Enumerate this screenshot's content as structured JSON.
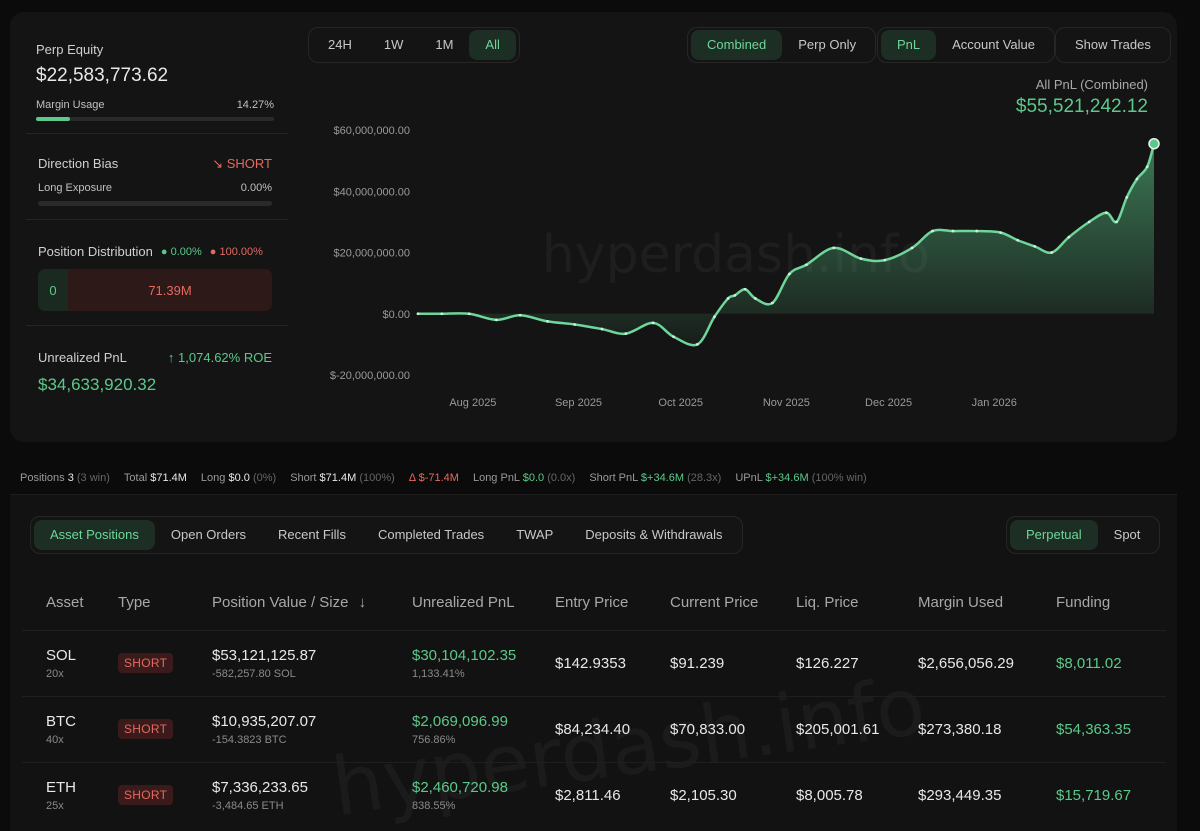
{
  "summary": {
    "perp_equity_label": "Perp Equity",
    "perp_equity_value": "$22,583,773.62",
    "margin_usage_label": "Margin Usage",
    "margin_usage_value": "14.27%",
    "margin_usage_fraction": 0.1427,
    "direction_bias_label": "Direction Bias",
    "direction_bias_value": "SHORT",
    "long_exposure_label": "Long Exposure",
    "long_exposure_value": "0.00%",
    "position_distribution_label": "Position Distribution",
    "dist_long_pct": "0.00%",
    "dist_short_pct": "100.00%",
    "dist_long_value": "0",
    "dist_short_value": "71.39M",
    "unrealized_pnl_label": "Unrealized PnL",
    "roe": "1,074.62% ROE",
    "unrealized_pnl_value": "$34,633,920.32"
  },
  "controls": {
    "timeframes": [
      "24H",
      "1W",
      "1M",
      "All"
    ],
    "active_timeframe": "All",
    "scope": [
      "Combined",
      "Perp Only"
    ],
    "active_scope": "Combined",
    "metric": [
      "PnL",
      "Account Value"
    ],
    "active_metric": "PnL",
    "show_trades": "Show Trades"
  },
  "chart_header": {
    "label": "All PnL (Combined)",
    "value": "$55,521,242.12"
  },
  "watermark": "hyperdash.info",
  "chart_data": {
    "type": "area",
    "title": "All PnL (Combined)",
    "xlabel": "",
    "ylabel": "",
    "x_ticks": [
      "Aug 2025",
      "Sep 2025",
      "Oct 2025",
      "Nov 2025",
      "Dec 2025",
      "Jan 2026"
    ],
    "y_ticks": [
      "$60,000,000.00",
      "$40,000,000.00",
      "$20,000,000.00",
      "$0.00",
      "$-20,000,000.00"
    ],
    "y_tick_values": [
      60000000,
      40000000,
      20000000,
      0,
      -20000000
    ],
    "ylim": [
      -20000000,
      60000000
    ],
    "x_range": [
      "2025-07-20",
      "2026-02-21"
    ],
    "grid": false,
    "series": [
      {
        "x": [
          "2025-07-20",
          "2025-07-27",
          "2025-08-04",
          "2025-08-12",
          "2025-08-19",
          "2025-08-27",
          "2025-09-04",
          "2025-09-12",
          "2025-09-19",
          "2025-09-27",
          "2025-10-03",
          "2025-10-10",
          "2025-10-15",
          "2025-10-19",
          "2025-10-21",
          "2025-10-24",
          "2025-10-27",
          "2025-11-01",
          "2025-11-06",
          "2025-11-11",
          "2025-11-19",
          "2025-11-27",
          "2025-12-04",
          "2025-12-12",
          "2025-12-18",
          "2025-12-24",
          "2025-12-31",
          "2026-01-07",
          "2026-01-12",
          "2026-01-17",
          "2026-01-22",
          "2026-01-27",
          "2026-02-02",
          "2026-02-07",
          "2026-02-10",
          "2026-02-13",
          "2026-02-16",
          "2026-02-19",
          "2026-02-21"
        ],
        "values": [
          0,
          0,
          0,
          -2000000,
          -500000,
          -2500000,
          -3500000,
          -5000000,
          -6500000,
          -3000000,
          -7500000,
          -10000000,
          -1000000,
          5000000,
          6000000,
          8000000,
          5000000,
          3500000,
          13000000,
          16000000,
          21500000,
          18000000,
          17500000,
          21500000,
          27000000,
          27000000,
          27000000,
          26500000,
          24000000,
          22000000,
          20000000,
          25000000,
          30000000,
          33000000,
          30000000,
          38000000,
          44000000,
          48000000,
          55521242
        ]
      }
    ]
  },
  "positions_bar": {
    "positions_label": "Positions",
    "positions_count": "3",
    "positions_win": "(3 win)",
    "total_label": "Total",
    "total_value": "$71.4M",
    "long_label": "Long",
    "long_value": "$0.0",
    "long_pct": "(0%)",
    "short_label": "Short",
    "short_value": "$71.4M",
    "short_pct": "(100%)",
    "delta_label": "Δ",
    "delta_value": "$-71.4M",
    "long_pnl_label": "Long PnL",
    "long_pnl_value": "$0.0",
    "long_pnl_mult": "(0.0x)",
    "short_pnl_label": "Short PnL",
    "short_pnl_value": "$+34.6M",
    "short_pnl_mult": "(28.3x)",
    "upnl_label": "UPnL",
    "upnl_value": "$+34.6M",
    "upnl_win": "(100% win)"
  },
  "tabs": {
    "items": [
      "Asset Positions",
      "Open Orders",
      "Recent Fills",
      "Completed Trades",
      "TWAP",
      "Deposits & Withdrawals"
    ],
    "active": "Asset Positions",
    "market": [
      "Perpetual",
      "Spot"
    ],
    "active_market": "Perpetual"
  },
  "table": {
    "headers": [
      "Asset",
      "Type",
      "Position Value / Size",
      "Unrealized PnL",
      "Entry Price",
      "Current Price",
      "Liq. Price",
      "Margin Used",
      "Funding"
    ],
    "sort_arrow": "↓",
    "rows": [
      {
        "asset": "SOL",
        "leverage": "20x",
        "type": "SHORT",
        "value": "$53,121,125.87",
        "size": "-582,257.80 SOL",
        "pnl": "$30,104,102.35",
        "pnl_pct": "1,133.41%",
        "entry": "$142.9353",
        "current": "$91.239",
        "liq": "$126.227",
        "margin": "$2,656,056.29",
        "funding": "$8,011.02"
      },
      {
        "asset": "BTC",
        "leverage": "40x",
        "type": "SHORT",
        "value": "$10,935,207.07",
        "size": "-154.3823 BTC",
        "pnl": "$2,069,096.99",
        "pnl_pct": "756.86%",
        "entry": "$84,234.40",
        "current": "$70,833.00",
        "liq": "$205,001.61",
        "margin": "$273,380.18",
        "funding": "$54,363.35"
      },
      {
        "asset": "ETH",
        "leverage": "25x",
        "type": "SHORT",
        "value": "$7,336,233.65",
        "size": "-3,484.65 ETH",
        "pnl": "$2,460,720.98",
        "pnl_pct": "838.55%",
        "entry": "$2,811.46",
        "current": "$2,105.30",
        "liq": "$8,005.78",
        "margin": "$293,449.35",
        "funding": "$15,719.67"
      }
    ]
  },
  "colors": {
    "accent_green": "#5cc98a",
    "short_red": "#e5695f",
    "background": "#0b0b0b",
    "card": "#141414"
  }
}
